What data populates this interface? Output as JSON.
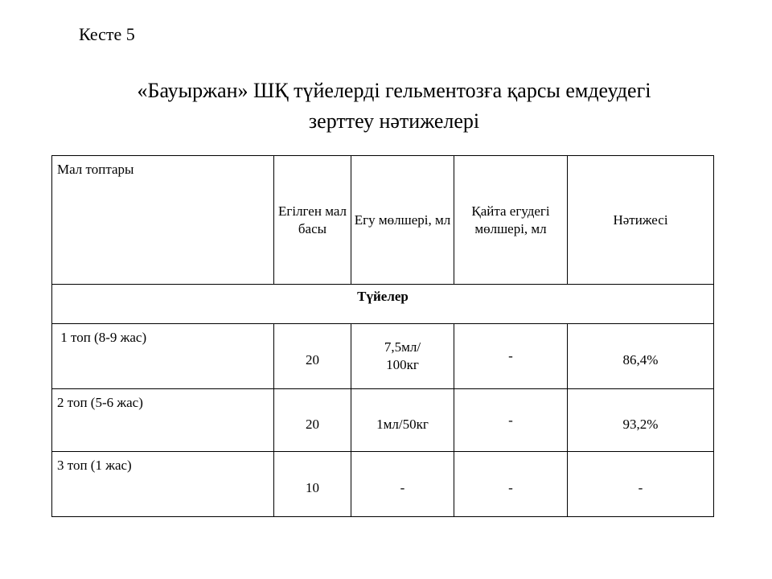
{
  "label": "Кесте 5",
  "title_line1": "«Бауыржан» ШҚ түйелерді гельментозға қарсы емдеудегі",
  "title_line2": "зерттеу нәтижелері",
  "table": {
    "headers": [
      "Мал топтары",
      "Егілген мал басы",
      "Егу мөлшері, мл",
      "Қайта егудегі мөлшері, мл",
      "Нәтижесі"
    ],
    "subheader": "Түйелер",
    "rows": [
      {
        "group": " 1 топ (8-9 жас)",
        "count": "20",
        "dose_line1": "7,5мл/",
        "dose_line2": "100кг",
        "redose": "-",
        "result": "86,4%"
      },
      {
        "group": "2 топ (5-6 жас)",
        "count": "20",
        "dose_line1": "1мл/50кг",
        "dose_line2": "",
        "redose": "-",
        "result": "93,2%"
      },
      {
        "group": "3 топ (1 жас)",
        "count": "10",
        "dose_line1": "-",
        "dose_line2": "",
        "redose": "-",
        "result": "-"
      }
    ]
  }
}
